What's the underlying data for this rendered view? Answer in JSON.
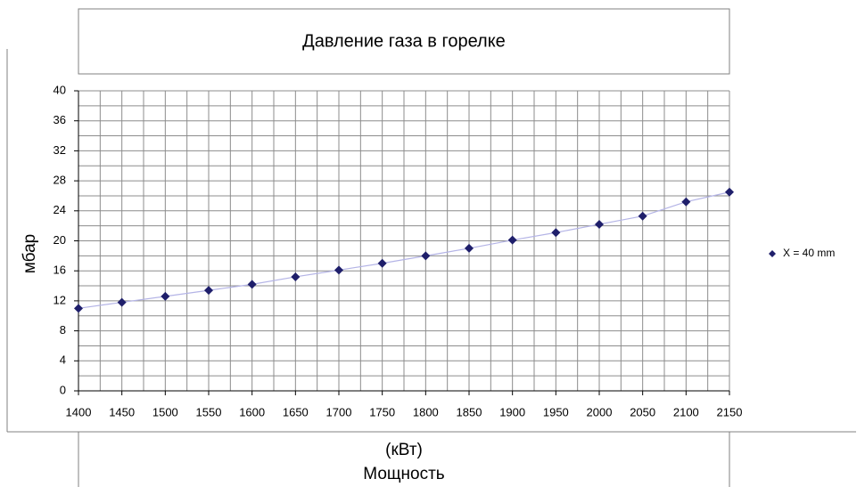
{
  "chart_data": {
    "type": "line",
    "title": "Давление газа в горелке",
    "xlabel": [
      "(кВт)",
      "Мощность"
    ],
    "ylabel": "мбар",
    "x": [
      1400,
      1450,
      1500,
      1550,
      1600,
      1650,
      1700,
      1750,
      1800,
      1850,
      1900,
      1950,
      2000,
      2050,
      2100,
      2150
    ],
    "series": [
      {
        "name": "X = 40 mm",
        "color": "#1f1f6b",
        "line_color": "#b4b4e6",
        "values": [
          11,
          11.8,
          12.6,
          13.4,
          14.2,
          15.2,
          16.1,
          17.0,
          18.0,
          19.0,
          20.1,
          21.1,
          22.2,
          23.3,
          25.2,
          26.5
        ]
      }
    ],
    "xlim": [
      1400,
      2150
    ],
    "xticks": [
      1400,
      1450,
      1500,
      1550,
      1600,
      1650,
      1700,
      1750,
      1800,
      1850,
      1900,
      1950,
      2000,
      2050,
      2100,
      2150
    ],
    "ylim": [
      0,
      40
    ],
    "yticks": [
      0,
      4,
      8,
      12,
      16,
      20,
      24,
      28,
      32,
      36,
      40
    ],
    "grid": true,
    "minor_grid": true,
    "legend": "right"
  }
}
